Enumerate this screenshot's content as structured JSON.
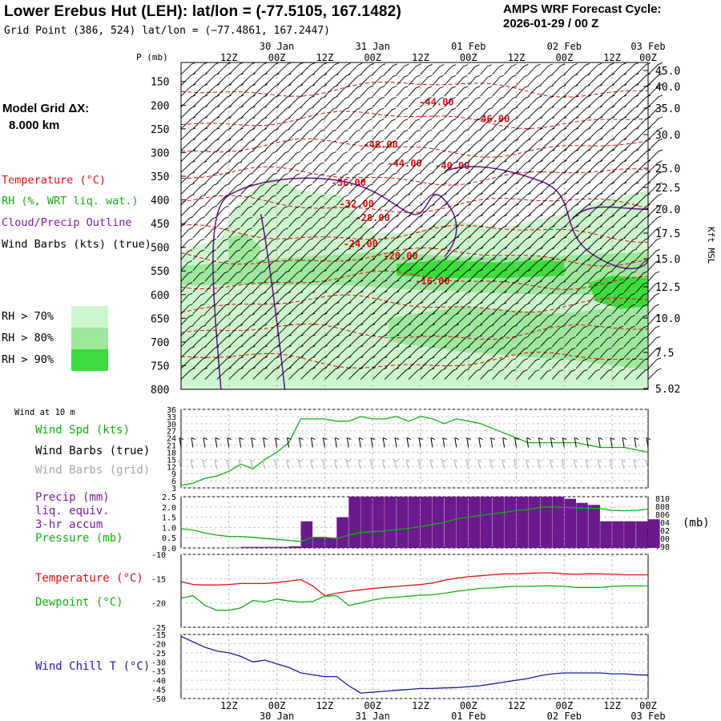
{
  "header": {
    "title": "Lower Erebus Hut (LEH):  lat/lon = (-77.5105, 167.1482)",
    "grid_point": "Grid Point (386, 524) lat/lon = (−77.4861, 167.2447)",
    "cycle_line1": "AMPS WRF Forecast Cycle:",
    "cycle_line2": "2026-01-29 / 00  Z"
  },
  "time_axis": {
    "hour_labels": [
      "12Z",
      "00Z",
      "12Z",
      "00Z",
      "12Z",
      "00Z",
      "12Z",
      "00Z",
      "12Z",
      "00Z"
    ],
    "date_labels": [
      "30 Jan",
      "31 Jan",
      "01 Feb",
      "02 Feb",
      "03 Feb"
    ]
  },
  "sidebar": {
    "model_grid": "Model Grid ΔX:",
    "model_grid_value": "8.000 km",
    "legend_temperature": "Temperature (°C)",
    "legend_rh": "RH (%, WRT liq. wat.)",
    "legend_cloud": "Cloud/Precip Outline",
    "legend_wind": "Wind Barbs (kts) (true)",
    "rh_levels": [
      "RH > 70%",
      "RH > 80%",
      "RH > 90%"
    ],
    "rh_colors": [
      "#cdf5cd",
      "#9ee89e",
      "#3ddc3d"
    ]
  },
  "panels": {
    "wind_at_10m": "Wind at 10 m",
    "wind_speed_label": "Wind Spd (kts)",
    "wind_barbs_true": "Wind Barbs (true)",
    "wind_barbs_grid": "Wind Barbs (grid)",
    "precip_label_1": "Precip (mm)",
    "precip_label_2": "liq. equiv.",
    "precip_label_3": "3-hr accum",
    "pressure_label": "Pressure (mb)",
    "pressure_unit": "(mb)",
    "temperature_label": "Temperature (°C)",
    "dewpoint_label": "Dewpoint (°C)",
    "windchill_label": "Wind Chill T (°C)"
  },
  "colors": {
    "temperature": "#e01010",
    "green": "#10b010",
    "purple": "#6a1a8c",
    "blue": "#1a1aa0",
    "grey": "#a8a8a8"
  },
  "chart_data": [
    {
      "type": "heatmap",
      "name": "time-height cross section",
      "y_axis_label": "P (mb)",
      "y_ticks": [
        "150",
        "200",
        "250",
        "300",
        "350",
        "400",
        "450",
        "500",
        "550",
        "600",
        "650",
        "700",
        "750",
        "800"
      ],
      "ylim": [
        800,
        120
      ],
      "right_axis_label": "Kft MSL",
      "right_ticks": [
        "45.0",
        "40.0",
        "35.0",
        "30.0",
        "25.0",
        "22.5",
        "20.0",
        "17.5",
        "15.0",
        "12.5",
        "10.0",
        "7.5",
        "5.02"
      ],
      "temperature_contour_labels": [
        "-44.00",
        "-46.00",
        "-48.00",
        "-44.00",
        "-40.00",
        "-36.00",
        "-32.00",
        "-28.00",
        "-24.00",
        "-20.00",
        "-16.00"
      ],
      "series": [
        {
          "name": "RH > 70%",
          "regions": "broad moist layer 400-800 mb from 30 Jan onward"
        },
        {
          "name": "RH > 90%",
          "regions": "band near 540-560 mb, 31 Jan-01 Feb; 590-620 mb 02 Feb"
        }
      ]
    },
    {
      "type": "line",
      "name": "10 m wind speed",
      "ylabel": "Wind Spd (kts)",
      "y_ticks": [
        "36",
        "33",
        "30",
        "27",
        "24",
        "21",
        "18",
        "15",
        "12",
        "9",
        "6",
        "3"
      ],
      "ylim": [
        3,
        36
      ],
      "x": [
        0,
        3,
        6,
        9,
        12,
        15,
        18,
        21,
        24,
        27,
        30,
        33,
        36,
        39,
        42,
        45,
        48,
        51,
        54,
        57,
        60,
        63,
        66,
        69,
        72,
        75,
        78,
        81,
        84,
        87,
        90,
        93,
        96,
        99,
        102,
        105,
        108,
        111,
        114,
        117
      ],
      "values": [
        4,
        5,
        7,
        8,
        10,
        13,
        11,
        15,
        18,
        22,
        32,
        32,
        32,
        31,
        31,
        33,
        32,
        32,
        33,
        31,
        33,
        32,
        30,
        32,
        31,
        30,
        28,
        26,
        24,
        22,
        22,
        22,
        22,
        22,
        21,
        20,
        20,
        20,
        19,
        18
      ]
    },
    {
      "type": "bar",
      "name": "3-hr precipitation and surface pressure",
      "ylabel": "Precip (mm)",
      "y_ticks": [
        "2.5",
        "2.0",
        "1.5",
        "1.0",
        "0.5",
        "0.0"
      ],
      "ylim": [
        0,
        2.5
      ],
      "right_ticks": [
        "810",
        "808",
        "806",
        "804",
        "802",
        "800",
        "798"
      ],
      "right_ylim": [
        798,
        810
      ],
      "x": [
        0,
        3,
        6,
        9,
        12,
        15,
        18,
        21,
        24,
        27,
        30,
        33,
        36,
        39,
        42,
        45,
        48,
        51,
        54,
        57,
        60,
        63,
        66,
        69,
        72,
        75,
        78,
        81,
        84,
        87,
        90,
        93,
        96,
        99,
        102,
        105,
        108,
        111,
        114,
        117
      ],
      "values": [
        0.0,
        0.0,
        0.0,
        0.0,
        0.02,
        0.05,
        0.05,
        0.05,
        0.05,
        0.08,
        1.3,
        0.5,
        0.5,
        1.5,
        2.5,
        2.5,
        2.5,
        2.5,
        2.5,
        2.5,
        2.5,
        2.5,
        2.5,
        2.5,
        2.5,
        2.5,
        2.5,
        2.5,
        2.5,
        2.5,
        2.5,
        2.5,
        2.4,
        2.2,
        2.1,
        1.3,
        1.3,
        1.3,
        1.3,
        1.4
      ],
      "pressure": [
        802.5,
        802.2,
        801.5,
        801.0,
        800.7,
        800.7,
        800.5,
        800.2,
        800.0,
        799.8,
        799.5,
        800.5,
        800.5,
        800.2,
        801.0,
        801.6,
        801.8,
        802.0,
        802.3,
        802.6,
        803.0,
        803.5,
        804.0,
        804.8,
        805.2,
        805.6,
        806.0,
        806.3,
        806.8,
        807.0,
        807.5,
        807.6,
        807.5,
        807.4,
        807.3,
        807.2,
        806.8,
        806.7,
        806.8,
        807.1
      ]
    },
    {
      "type": "line",
      "name": "temperature and dewpoint",
      "y_ticks": [
        "-10",
        "-15",
        "-20",
        "-25"
      ],
      "ylim": [
        -25,
        -10
      ],
      "x": [
        0,
        3,
        6,
        9,
        12,
        15,
        18,
        21,
        24,
        27,
        30,
        33,
        36,
        39,
        42,
        45,
        48,
        51,
        54,
        57,
        60,
        63,
        66,
        69,
        72,
        75,
        78,
        81,
        84,
        87,
        90,
        93,
        96,
        99,
        102,
        105,
        108,
        111,
        114,
        117
      ],
      "series": [
        {
          "name": "Temperature",
          "values": [
            -15.6,
            -16.2,
            -16.3,
            -16.3,
            -16.2,
            -16.0,
            -16.0,
            -16.0,
            -15.8,
            -15.5,
            -15.2,
            -16.5,
            -18.5,
            -18.0,
            -17.6,
            -17.3,
            -17.0,
            -16.8,
            -16.6,
            -16.4,
            -16.2,
            -15.9,
            -15.3,
            -14.9,
            -14.6,
            -14.4,
            -14.2,
            -14.0,
            -14.0,
            -13.9,
            -13.8,
            -13.8,
            -14.0,
            -14.1,
            -14.0,
            -14.0,
            -14.1,
            -14.2,
            -14.2,
            -14.2
          ]
        },
        {
          "name": "Dewpoint",
          "values": [
            -19.0,
            -18.5,
            -20.5,
            -21.5,
            -21.5,
            -21.0,
            -19.5,
            -19.8,
            -19.2,
            -19.6,
            -19.8,
            -19.7,
            -18.6,
            -18.5,
            -20.5,
            -20.0,
            -19.4,
            -19.0,
            -18.8,
            -18.6,
            -18.4,
            -18.3,
            -18.0,
            -17.6,
            -17.3,
            -17.0,
            -16.9,
            -16.7,
            -16.6,
            -16.6,
            -16.5,
            -16.5,
            -16.6,
            -16.8,
            -16.8,
            -16.8,
            -16.6,
            -16.5,
            -16.5,
            -16.5
          ]
        }
      ]
    },
    {
      "type": "line",
      "name": "wind chill temperature",
      "ylabel": "Wind Chill T (°C)",
      "y_ticks": [
        "-15",
        "-20",
        "-25",
        "-30",
        "-35",
        "-40",
        "-45",
        "-50"
      ],
      "ylim": [
        -50,
        -15
      ],
      "x": [
        0,
        3,
        6,
        9,
        12,
        15,
        18,
        21,
        24,
        27,
        30,
        33,
        36,
        39,
        42,
        45,
        48,
        51,
        54,
        57,
        60,
        63,
        66,
        69,
        72,
        75,
        78,
        81,
        84,
        87,
        90,
        93,
        96,
        99,
        102,
        105,
        108,
        111,
        114,
        117
      ],
      "values": [
        -16,
        -19,
        -22,
        -24,
        -25,
        -27,
        -30,
        -29,
        -31,
        -33,
        -36,
        -37,
        -38,
        -38,
        -43,
        -47,
        -46.5,
        -46,
        -45.5,
        -45,
        -44.5,
        -44.5,
        -44.2,
        -44,
        -43.5,
        -43,
        -42,
        -41,
        -40,
        -39,
        -37.5,
        -36.5,
        -36,
        -36,
        -36,
        -36,
        -36.5,
        -36.5,
        -37,
        -37.2
      ]
    }
  ]
}
